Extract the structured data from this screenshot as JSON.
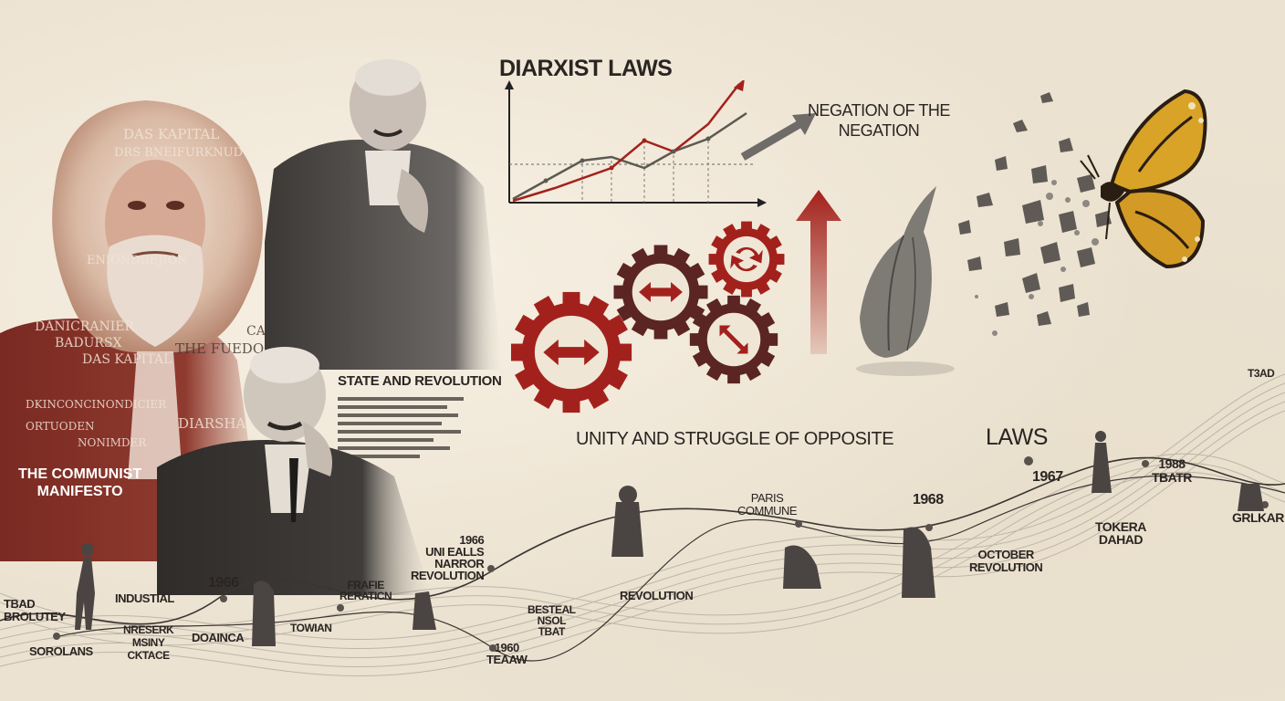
{
  "colors": {
    "accent_red": "#a3211c",
    "gear_dark": "#5a2523",
    "ink": "#2a2522",
    "paper": "#ece2d1"
  },
  "headings": {
    "laws_chart": "DIARXIST LAWS",
    "negation": "NEGATION OF THE\nNEGATION",
    "unity": "UNITY AND STRUGGLE OF OPPOSITE",
    "laws": "LAWS",
    "state_revolution": "STATE AND REVOLUTION"
  },
  "portrait_text": {
    "das_kapital_top": "DAS KAPITAL",
    "line2": "DRS BNEIFURKNUD",
    "line3": "ENIONDIIEJION",
    "line4": "DANICRANIER",
    "line5": "BADURSX",
    "line6": "DAS KAPITAL",
    "line7": "CADEL",
    "line8": "THE FUEDORI",
    "line9": "DKINCONCINONDICIER",
    "line10": "DIARSHA",
    "line11": "ORTUODEN",
    "line12": "NONIMDER",
    "manifesto": "THE COMMUNIST\nMANIFESTO"
  },
  "timeline": [
    {
      "text": "TBAD\nBROLUTEY"
    },
    {
      "text": "INDUSTIAL"
    },
    {
      "text": "SOROLANS"
    },
    {
      "text": "NRESERK\nMSINY\nCKTACE"
    },
    {
      "text": "DOAINCA"
    },
    {
      "text": "1966"
    },
    {
      "text": "TOWIAN"
    },
    {
      "text": "FRAFIE\nRERATICN"
    },
    {
      "text": "1966\nUNI EALLS\nNARROR\nREVOLUTION"
    },
    {
      "text": "BESTEAL\nNSOL\nTBAT"
    },
    {
      "text": "1960\nTEAAW"
    },
    {
      "text": "PARIS\nCOMMUNE"
    },
    {
      "text": "REVOLUTION"
    },
    {
      "text": "1968"
    },
    {
      "text": "OCTOBER\nREVOLUTION"
    },
    {
      "text": "1967"
    },
    {
      "text": "1988\nTBATR"
    },
    {
      "text": "TOKERA\nDAHAD"
    },
    {
      "text": "GRLKAR"
    },
    {
      "text": "T3AD"
    }
  ],
  "icons": {
    "butterfly": "butterfly-icon",
    "chrysalis": "chrysalis-icon",
    "gear": "gear-icon",
    "arrow_up": "arrow-up-icon"
  }
}
